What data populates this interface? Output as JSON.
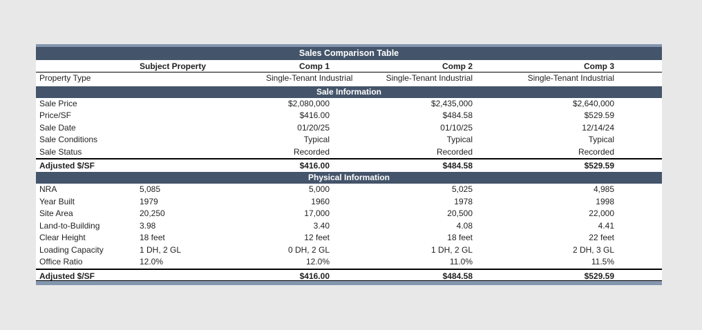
{
  "title": "Sales Comparison Table",
  "columns": [
    "Subject Property",
    "Comp 1",
    "Comp 2",
    "Comp 3"
  ],
  "property_type": {
    "label": "Property Type",
    "values": [
      "",
      "Single-Tenant Industrial",
      "Single-Tenant Industrial",
      "Single-Tenant Industrial"
    ]
  },
  "sections": [
    {
      "heading": "Sale Information",
      "rows": [
        {
          "label": "Sale Price",
          "values": [
            "",
            "$2,080,000",
            "$2,435,000",
            "$2,640,000"
          ]
        },
        {
          "label": "Price/SF",
          "values": [
            "",
            "$416.00",
            "$484.58",
            "$529.59"
          ]
        },
        {
          "label": "Sale Date",
          "values": [
            "",
            "01/20/25",
            "01/10/25",
            "12/14/24"
          ]
        },
        {
          "label": "Sale Conditions",
          "values": [
            "",
            "Typical",
            "Typical",
            "Typical"
          ]
        },
        {
          "label": "Sale Status",
          "values": [
            "",
            "Recorded",
            "Recorded",
            "Recorded"
          ]
        }
      ],
      "total_row": {
        "label": "Adjusted $/SF",
        "values": [
          "",
          "$416.00",
          "$484.58",
          "$529.59"
        ]
      }
    },
    {
      "heading": "Physical Information",
      "rows": [
        {
          "label": "NRA",
          "values": [
            "5,085",
            "5,000",
            "5,025",
            "4,985"
          ]
        },
        {
          "label": "Year Built",
          "values": [
            "1979",
            "1960",
            "1978",
            "1998"
          ]
        },
        {
          "label": "Site Area",
          "values": [
            "20,250",
            "17,000",
            "20,500",
            "22,000"
          ]
        },
        {
          "label": "Land-to-Building",
          "values": [
            "3.98",
            "3.40",
            "4.08",
            "4.41"
          ]
        },
        {
          "label": "Clear Height",
          "values": [
            "18 feet",
            "12 feet",
            "18 feet",
            "22 feet"
          ]
        },
        {
          "label": "Loading Capacity",
          "values": [
            "1 DH, 2 GL",
            "0 DH, 2 GL",
            "1 DH, 2 GL",
            "2 DH, 3 GL"
          ]
        },
        {
          "label": "Office Ratio",
          "values": [
            "12.0%",
            "12.0%",
            "11.0%",
            "11.5%"
          ]
        }
      ],
      "total_row": {
        "label": "Adjusted $/SF",
        "values": [
          "",
          "$416.00",
          "$484.58",
          "$529.59"
        ]
      }
    }
  ],
  "colors": {
    "header_bg": "#44546A",
    "header_text": "#FFFFFF",
    "accent_strip": "#8496B0",
    "page_bg": "#E8E8E8",
    "text": "#1F1F1F"
  }
}
